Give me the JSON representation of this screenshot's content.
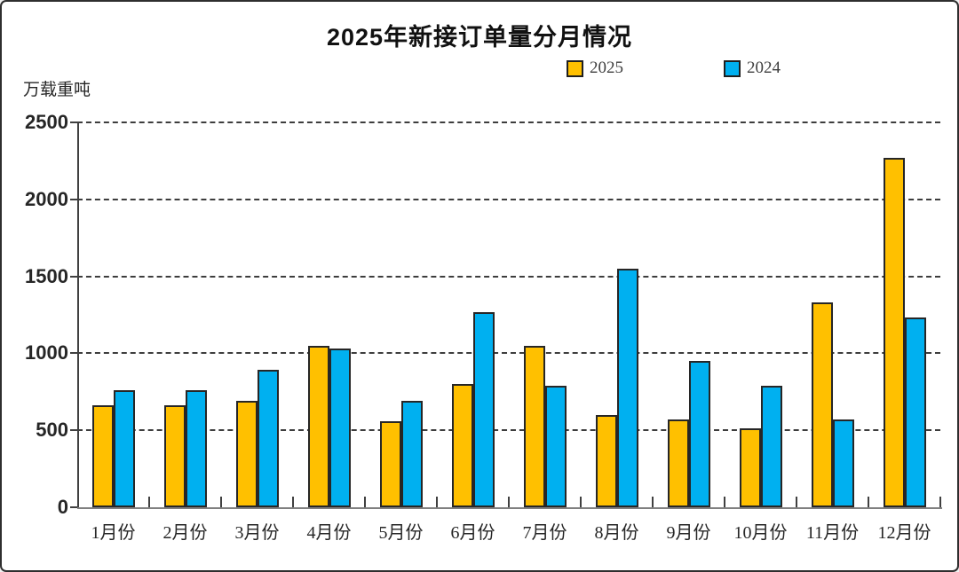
{
  "chart_data": {
    "type": "bar",
    "title": "2025年新接订单量分月情况",
    "ylabel": "万载重吨",
    "xlabel": "",
    "categories": [
      "1月份",
      "2月份",
      "3月份",
      "4月份",
      "5月份",
      "6月份",
      "7月份",
      "8月份",
      "9月份",
      "10月份",
      "11月份",
      "12月份"
    ],
    "series": [
      {
        "name": "2025",
        "color": "#FFC000",
        "values": [
          660,
          660,
          690,
          1050,
          560,
          800,
          1050,
          600,
          570,
          510,
          1330,
          2270
        ]
      },
      {
        "name": "2024",
        "color": "#00B0F0",
        "values": [
          760,
          760,
          890,
          1030,
          690,
          1270,
          790,
          1550,
          950,
          790,
          570,
          1230
        ]
      }
    ],
    "ylim": [
      0,
      2500
    ],
    "yticks": [
      0,
      500,
      1000,
      1500,
      2000,
      2500
    ],
    "grid": "horizontal-dashed",
    "legend_position": "top-center",
    "bar_outline_color": "#262626"
  }
}
